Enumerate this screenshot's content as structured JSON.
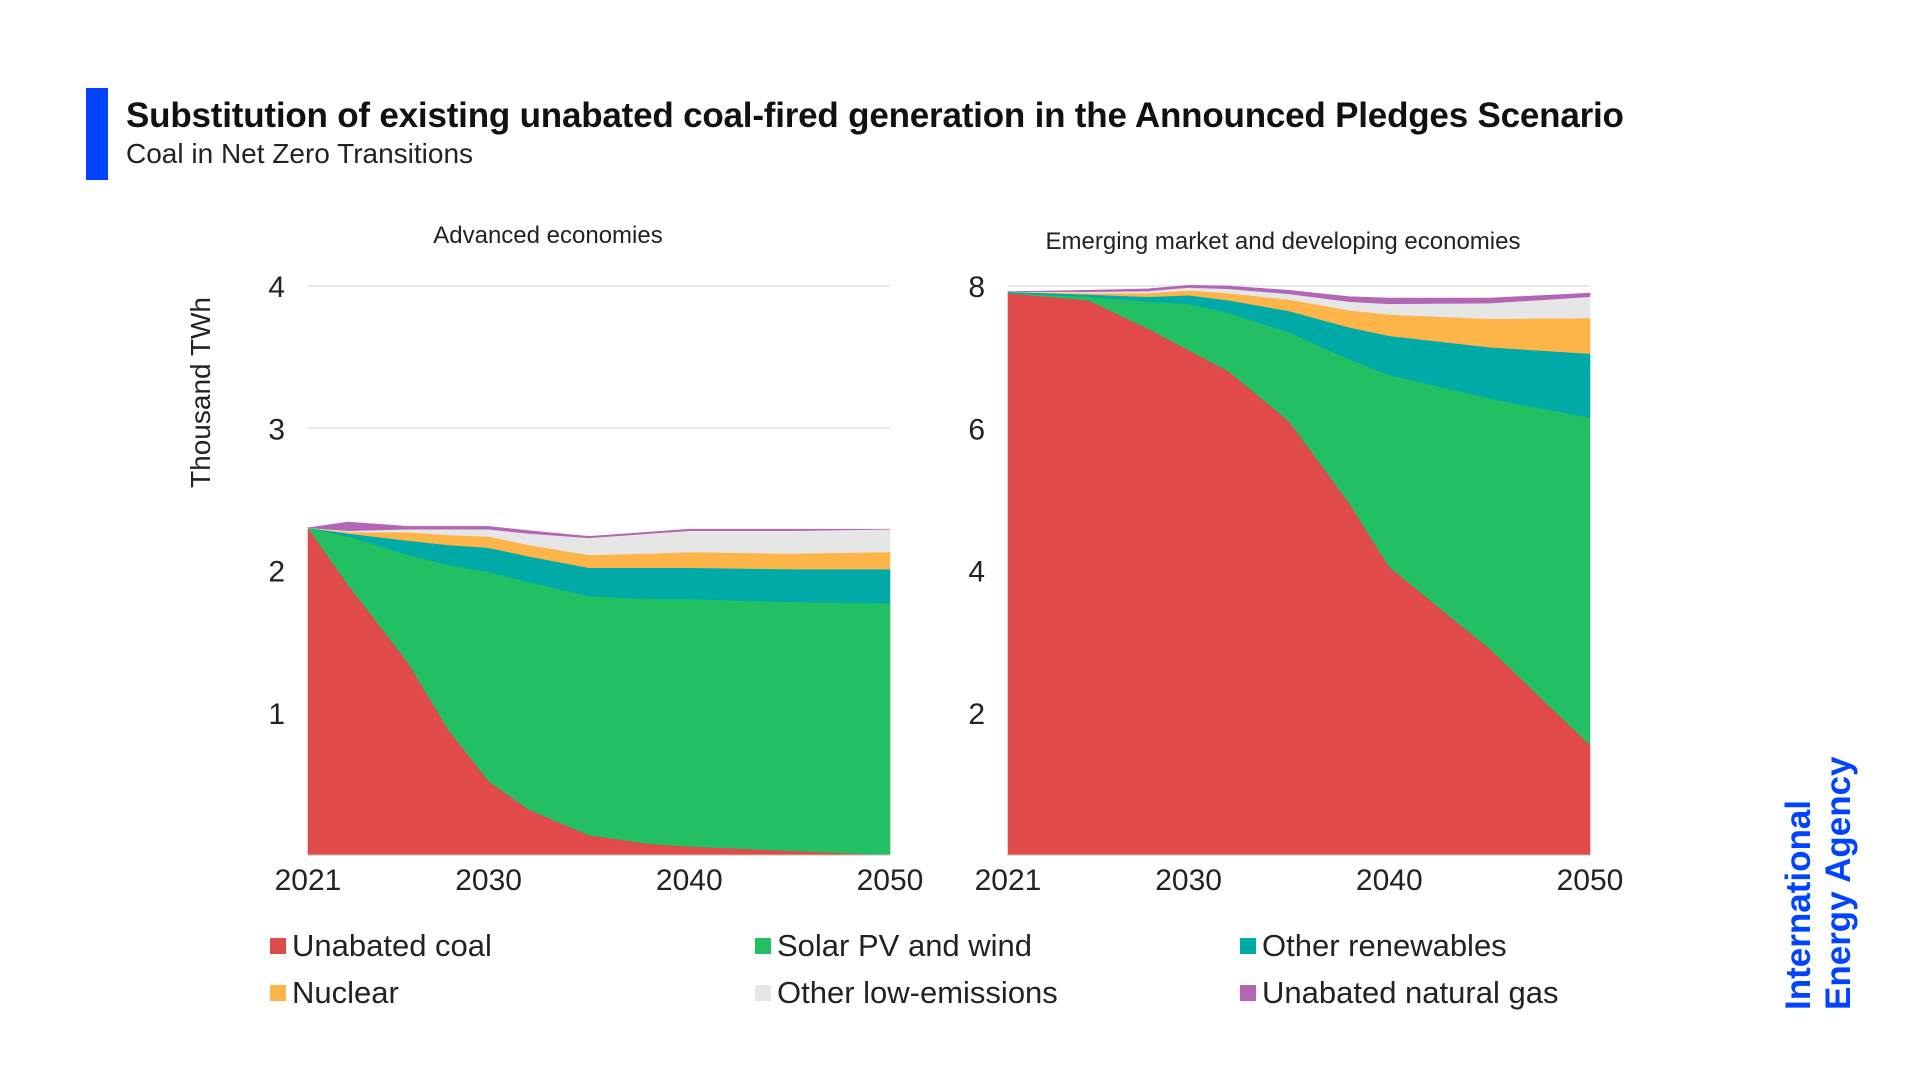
{
  "header": {
    "title": "Substitution of existing unabated coal-fired generation in the Announced Pledges Scenario",
    "subtitle": "Coal in Net Zero Transitions",
    "accent_color": "#0044ff"
  },
  "logo": {
    "line1": "International",
    "line2": "Energy Agency",
    "color": "#0044ff"
  },
  "chart_data": [
    {
      "type": "area",
      "stacked": true,
      "title": "Advanced economies",
      "ylabel": "Thousand TWh",
      "xlabel": "",
      "ylim": [
        0,
        4
      ],
      "yticks": [
        1,
        2,
        3,
        4
      ],
      "xlim": [
        2021,
        2050
      ],
      "xticks": [
        2021,
        2030,
        2040,
        2050
      ],
      "grid": true,
      "x": [
        2021,
        2023,
        2026,
        2028,
        2030,
        2032,
        2035,
        2038,
        2040,
        2045,
        2050
      ],
      "series": [
        {
          "name": "Unabated coal",
          "color": "#e04a4a",
          "values": [
            2.3,
            1.9,
            1.35,
            0.88,
            0.52,
            0.32,
            0.14,
            0.08,
            0.06,
            0.03,
            0.0
          ]
        },
        {
          "name": "Solar PV and wind",
          "color": "#22c062",
          "values": [
            0.0,
            0.34,
            0.76,
            1.16,
            1.47,
            1.6,
            1.68,
            1.72,
            1.74,
            1.75,
            1.77
          ]
        },
        {
          "name": "Other renewables",
          "color": "#00aaa6",
          "values": [
            0.0,
            0.02,
            0.1,
            0.14,
            0.17,
            0.18,
            0.2,
            0.22,
            0.22,
            0.23,
            0.24
          ]
        },
        {
          "name": "Nuclear",
          "color": "#fdb449",
          "values": [
            0.0,
            0.01,
            0.06,
            0.07,
            0.08,
            0.08,
            0.09,
            0.1,
            0.11,
            0.11,
            0.12
          ]
        },
        {
          "name": "Other low-emissions",
          "color": "#e6e6e6",
          "values": [
            0.0,
            0.01,
            0.02,
            0.04,
            0.05,
            0.08,
            0.12,
            0.14,
            0.15,
            0.16,
            0.16
          ]
        },
        {
          "name": "Unabated natural gas",
          "color": "#b266b5",
          "values": [
            0.0,
            0.06,
            0.02,
            0.02,
            0.02,
            0.02,
            0.01,
            0.01,
            0.01,
            0.01,
            0.0
          ]
        }
      ]
    },
    {
      "type": "area",
      "stacked": true,
      "title": "Emerging market and developing economies",
      "ylabel": "",
      "xlabel": "",
      "ylim": [
        0,
        8
      ],
      "yticks": [
        2,
        4,
        6,
        8
      ],
      "xlim": [
        2021,
        2050
      ],
      "xticks": [
        2021,
        2030,
        2040,
        2050
      ],
      "grid": true,
      "x": [
        2021,
        2025,
        2028,
        2030,
        2032,
        2035,
        2038,
        2040,
        2045,
        2050
      ],
      "series": [
        {
          "name": "Unabated coal",
          "color": "#e04a4a",
          "values": [
            7.9,
            7.8,
            7.4,
            7.1,
            6.8,
            6.1,
            4.95,
            4.05,
            2.9,
            1.55
          ]
        },
        {
          "name": "Solar PV and wind",
          "color": "#22c062",
          "values": [
            0.0,
            0.05,
            0.38,
            0.65,
            0.82,
            1.25,
            2.02,
            2.7,
            3.52,
            4.6
          ]
        },
        {
          "name": "Other renewables",
          "color": "#00aaa6",
          "values": [
            0.02,
            0.03,
            0.07,
            0.12,
            0.18,
            0.3,
            0.45,
            0.55,
            0.72,
            0.9
          ]
        },
        {
          "name": "Nuclear",
          "color": "#fdb449",
          "values": [
            0.0,
            0.02,
            0.05,
            0.07,
            0.1,
            0.16,
            0.24,
            0.3,
            0.4,
            0.5
          ]
        },
        {
          "name": "Other low-emissions",
          "color": "#e6e6e6",
          "values": [
            0.0,
            0.02,
            0.03,
            0.04,
            0.06,
            0.08,
            0.12,
            0.15,
            0.22,
            0.3
          ]
        },
        {
          "name": "Unabated natural gas",
          "color": "#b266b5",
          "values": [
            0.0,
            0.02,
            0.03,
            0.03,
            0.04,
            0.05,
            0.07,
            0.08,
            0.07,
            0.05
          ]
        }
      ]
    }
  ],
  "legend": [
    {
      "label": "Unabated coal",
      "color": "#e04a4a"
    },
    {
      "label": "Solar PV and wind",
      "color": "#22c062"
    },
    {
      "label": "Other renewables",
      "color": "#00aaa6"
    },
    {
      "label": "Nuclear",
      "color": "#fdb449"
    },
    {
      "label": "Other low-emissions",
      "color": "#e6e6e6"
    },
    {
      "label": "Unabated natural gas",
      "color": "#b266b5"
    }
  ]
}
